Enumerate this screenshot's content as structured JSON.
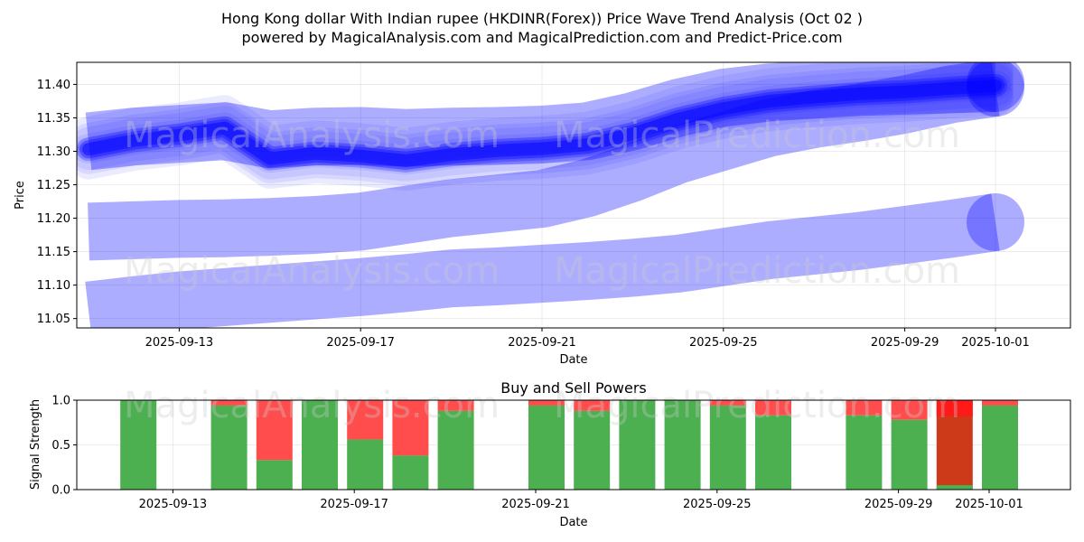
{
  "title_line1": "Hong Kong dollar With Indian rupee (HKDINR(Forex)) Price Wave Trend Analysis (Oct 02 )",
  "title_line2": "powered by MagicalAnalysis.com and MagicalPrediction.com and Predict-Price.com",
  "watermarks": [
    "MagicalAnalysis.com",
    "MagicalPrediction.com"
  ],
  "colors": {
    "wave": "#0000ff",
    "buy": "#4caf50",
    "sell": "#ff4d4d",
    "sell_dark": "#cc3a1a",
    "sell_bright": "#ff1a1a"
  },
  "chart_data": [
    {
      "type": "line",
      "title": "Hong Kong dollar With Indian rupee (HKDINR(Forex)) Price Wave Trend Analysis (Oct 02 )",
      "xlabel": "Date",
      "ylabel": "Price",
      "x_ticks": [
        "2025-09-13",
        "2025-09-17",
        "2025-09-21",
        "2025-09-25",
        "2025-09-29",
        "2025-10-01"
      ],
      "y_ticks": [
        "11.05",
        "11.10",
        "11.15",
        "11.20",
        "11.25",
        "11.30",
        "11.35",
        "11.40"
      ],
      "xlim": [
        0,
        21.95
      ],
      "ylim": [
        11.036,
        11.433
      ],
      "dates": [
        "2025-09-11",
        "2025-09-12",
        "2025-09-13",
        "2025-09-14",
        "2025-09-15",
        "2025-09-16",
        "2025-09-17",
        "2025-09-18",
        "2025-09-19",
        "2025-09-20",
        "2025-09-21",
        "2025-09-22",
        "2025-09-23",
        "2025-09-24",
        "2025-09-25",
        "2025-09-26",
        "2025-09-27",
        "2025-09-28",
        "2025-09-29",
        "2025-09-30",
        "2025-10-01"
      ],
      "series": [
        {
          "name": "main wave",
          "values": [
            11.303,
            11.316,
            11.324,
            11.335,
            11.289,
            11.297,
            11.293,
            11.286,
            11.295,
            11.301,
            11.304,
            11.31,
            11.326,
            11.348,
            11.364,
            11.375,
            11.381,
            11.386,
            11.389,
            11.394,
            11.398
          ]
        },
        {
          "name": "upper band",
          "values": [
            11.315,
            11.322,
            11.326,
            11.33,
            11.318,
            11.322,
            11.323,
            11.32,
            11.322,
            11.323,
            11.325,
            11.33,
            11.345,
            11.365,
            11.38,
            11.388,
            11.392,
            11.396,
            11.398,
            11.4,
            11.402
          ]
        },
        {
          "name": "lower wave 1",
          "values": [
            11.18,
            11.182,
            11.184,
            11.185,
            11.187,
            11.19,
            11.195,
            11.205,
            11.215,
            11.222,
            11.229,
            11.245,
            11.268,
            11.295,
            11.315,
            11.335,
            11.348,
            11.358,
            11.37,
            11.385,
            11.395
          ]
        },
        {
          "name": "lower wave 2",
          "values": [
            11.062,
            11.07,
            11.077,
            11.082,
            11.087,
            11.092,
            11.097,
            11.103,
            11.11,
            11.113,
            11.117,
            11.121,
            11.126,
            11.132,
            11.142,
            11.152,
            11.159,
            11.166,
            11.175,
            11.184,
            11.194
          ]
        }
      ]
    },
    {
      "type": "bar",
      "title": "Buy and Sell Powers",
      "xlabel": "Date",
      "ylabel": "Signal Strength",
      "x_ticks": [
        "2025-09-13",
        "2025-09-17",
        "2025-09-21",
        "2025-09-25",
        "2025-09-29",
        "2025-10-01"
      ],
      "y_ticks": [
        "0.0",
        "0.5",
        "1.0"
      ],
      "ylim": [
        0,
        1
      ],
      "categories": [
        "2025-09-12",
        "2025-09-14",
        "2025-09-15",
        "2025-09-16",
        "2025-09-17",
        "2025-09-18",
        "2025-09-19",
        "2025-09-21",
        "2025-09-22",
        "2025-09-23",
        "2025-09-24",
        "2025-09-25",
        "2025-09-26",
        "2025-09-28",
        "2025-09-29",
        "2025-09-30",
        "2025-10-01"
      ],
      "series": [
        {
          "name": "buy",
          "values": [
            1.0,
            0.94,
            0.33,
            1.0,
            0.56,
            0.38,
            0.88,
            0.94,
            0.88,
            1.0,
            1.0,
            0.94,
            0.83,
            0.83,
            0.78,
            0.05,
            0.94
          ]
        },
        {
          "name": "sell",
          "values": [
            0.0,
            0.06,
            0.67,
            0.0,
            0.44,
            0.62,
            0.12,
            0.06,
            0.12,
            0.0,
            0.0,
            0.06,
            0.17,
            0.17,
            0.22,
            0.95,
            0.06
          ]
        }
      ]
    }
  ]
}
